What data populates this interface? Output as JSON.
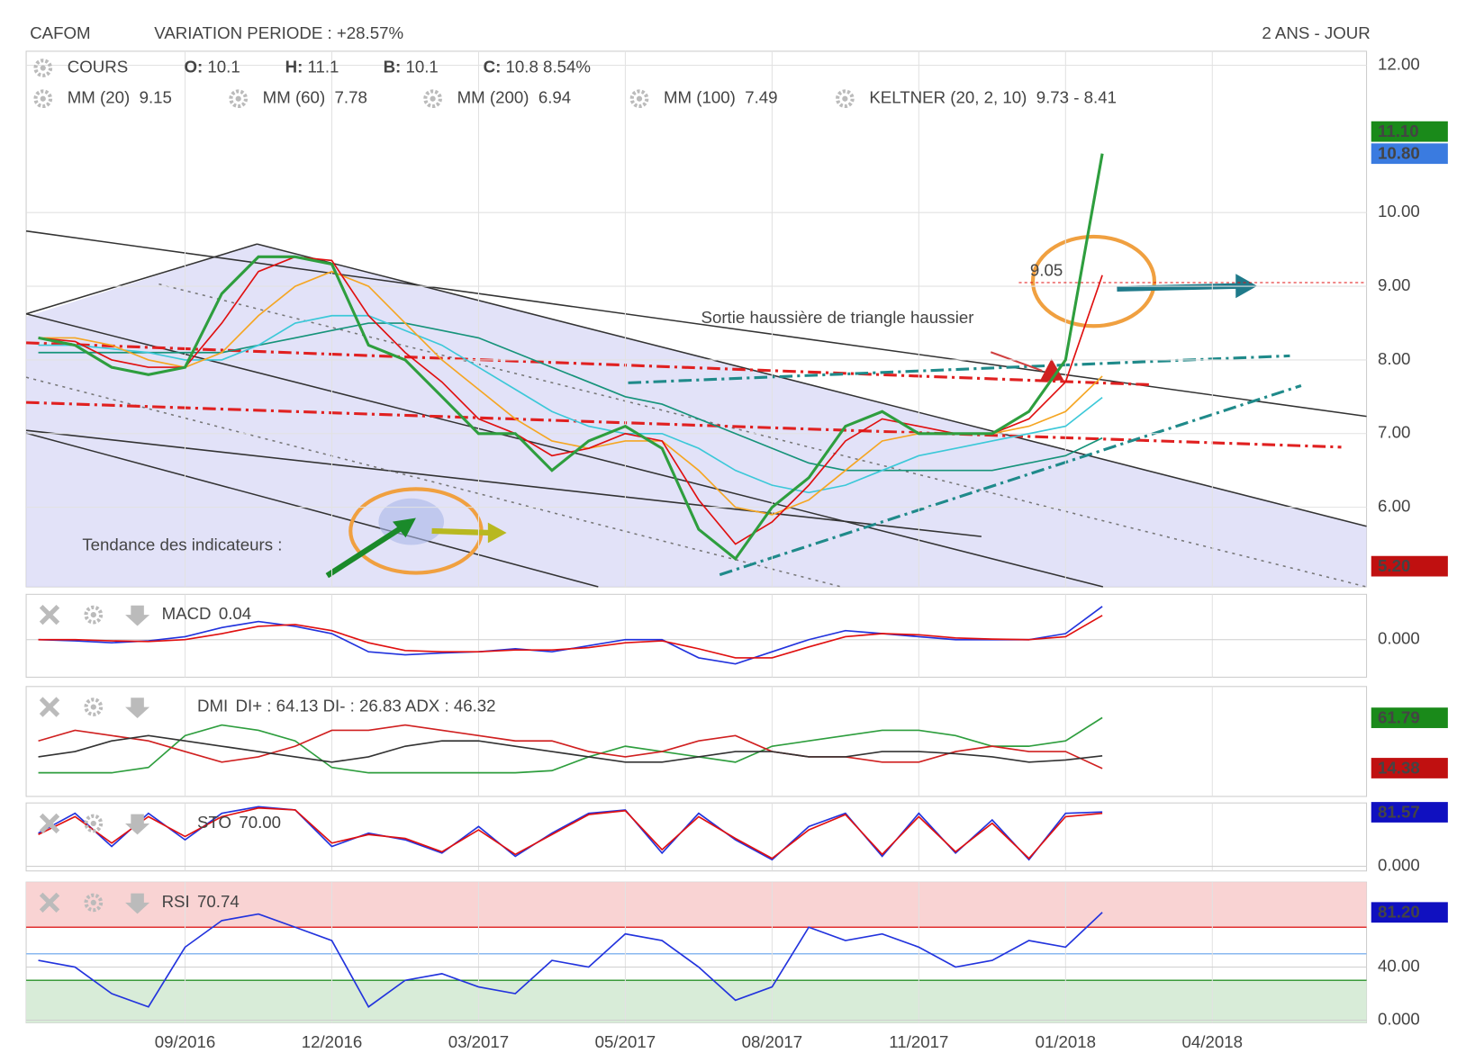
{
  "header": {
    "symbol": "CAFOM",
    "variation": "VARIATION PERIODE : +28.57%",
    "period": "2 ANS - JOUR"
  },
  "chart_data": [
    {
      "type": "line",
      "name": "COURS",
      "quote": [
        {
          "label": "O:",
          "value": 10.1
        },
        {
          "label": "H:",
          "value": 11.1
        },
        {
          "label": "B:",
          "value": 10.1
        },
        {
          "label": "C:",
          "value": 10.8
        }
      ],
      "change": "8.54%",
      "categories": [
        null,
        null,
        null,
        null,
        "09/2016",
        null,
        null,
        null,
        "12/2016",
        null,
        null,
        null,
        "03/2017",
        null,
        null,
        null,
        "05/2017",
        null,
        null,
        null,
        "08/2017",
        null,
        null,
        null,
        "11/2017",
        null,
        null,
        null,
        "01/2018",
        null,
        null,
        null,
        "04/2018",
        null,
        null,
        null,
        null
      ],
      "ylim": [
        4.92,
        12.19
      ],
      "yticks": [
        {
          "value": 6,
          "label": "6.00"
        },
        {
          "value": 7,
          "label": "7.00"
        },
        {
          "value": 8,
          "label": "8.00"
        },
        {
          "value": 9,
          "label": "9.00"
        },
        {
          "value": 10,
          "label": "10.00"
        },
        {
          "value": 12,
          "label": "12.00"
        }
      ],
      "grid": true,
      "series": [
        {
          "name": "MM (200)",
          "legend_value": "6.94",
          "color": "#16937a",
          "values": [
            8.1,
            8.1,
            8.1,
            8.1,
            8.1,
            8.1,
            8.2,
            8.3,
            8.4,
            8.5,
            8.5,
            8.4,
            8.3,
            8.1,
            7.9,
            7.7,
            7.5,
            7.4,
            7.2,
            7.0,
            6.8,
            6.6,
            6.5,
            6.5,
            6.5,
            6.5,
            6.5,
            6.6,
            6.7,
            6.94,
            null,
            null,
            null,
            null,
            null,
            null,
            null
          ]
        },
        {
          "name": "MM (100)",
          "legend_value": "7.49",
          "color": "#3cc8d8",
          "values": [
            8.2,
            8.2,
            8.15,
            8.1,
            8.0,
            8.0,
            8.2,
            8.5,
            8.6,
            8.6,
            8.4,
            8.2,
            7.9,
            7.6,
            7.3,
            7.1,
            7.0,
            7.0,
            6.8,
            6.5,
            6.3,
            6.2,
            6.3,
            6.5,
            6.7,
            6.8,
            6.9,
            7.0,
            7.1,
            7.49,
            null,
            null,
            null,
            null,
            null,
            null,
            null
          ]
        },
        {
          "name": "MM (60)",
          "legend_value": "7.78",
          "color": "#f5a623",
          "values": [
            8.3,
            8.3,
            8.2,
            8.0,
            7.9,
            8.1,
            8.6,
            9.0,
            9.2,
            9.0,
            8.5,
            8.0,
            7.6,
            7.2,
            6.9,
            6.8,
            6.9,
            6.9,
            6.5,
            6.0,
            5.9,
            6.1,
            6.5,
            6.9,
            7.0,
            7.0,
            7.0,
            7.1,
            7.3,
            7.78,
            null,
            null,
            null,
            null,
            null,
            null,
            null
          ]
        },
        {
          "name": "MM (20)",
          "legend_value": "9.15",
          "color": "#e01010",
          "values": [
            8.3,
            8.25,
            8.0,
            7.9,
            7.9,
            8.5,
            9.2,
            9.4,
            9.35,
            8.6,
            8.1,
            7.7,
            7.2,
            7.0,
            6.7,
            6.8,
            7.0,
            6.9,
            6.1,
            5.5,
            5.8,
            6.3,
            6.9,
            7.2,
            7.1,
            7.0,
            7.0,
            7.2,
            7.7,
            9.15,
            null,
            null,
            null,
            null,
            null,
            null,
            null
          ]
        },
        {
          "name": "COURS",
          "color": "#2e9e3e",
          "values": [
            8.3,
            8.2,
            7.9,
            7.8,
            7.9,
            8.9,
            9.4,
            9.4,
            9.3,
            8.2,
            8.0,
            7.5,
            7.0,
            7.0,
            6.5,
            6.9,
            7.1,
            6.8,
            5.7,
            5.3,
            6.0,
            6.4,
            7.1,
            7.3,
            7.0,
            7.0,
            7.0,
            7.3,
            8.0,
            10.8,
            null,
            null,
            null,
            null,
            null,
            null,
            null
          ]
        }
      ],
      "keltner": {
        "name": "KELTNER (20, 2, 10)",
        "value": "9.73 - 8.41",
        "color": "#1a8a1a"
      },
      "level": {
        "value": 9.05,
        "label": "9.05",
        "color": "#e01010"
      },
      "annotations": [
        {
          "text": "Sortie haussière de triangle haussier",
          "color": "#d32f2f"
        },
        {
          "text": "Tendance des indicateurs :",
          "color": "#1a237e"
        }
      ],
      "tags": [
        {
          "value": 11.1,
          "label": "11.10",
          "color": "#1a8a1a"
        },
        {
          "value": 10.8,
          "label": "10.80",
          "color": "#3a7be0"
        },
        {
          "value": 5.2,
          "label": "5.20",
          "color": "#c01010"
        }
      ]
    },
    {
      "type": "line",
      "name": "MACD",
      "label_value": "0.04",
      "ylim": [
        -0.62,
        0.75
      ],
      "yticks": [
        {
          "value": 0,
          "label": "0.000"
        }
      ],
      "series": [
        {
          "name": "MACD",
          "color": "#2233dd",
          "values": [
            0,
            -0.02,
            -0.05,
            -0.02,
            0.05,
            0.2,
            0.3,
            0.22,
            0.1,
            -0.2,
            -0.25,
            -0.22,
            -0.2,
            -0.15,
            -0.2,
            -0.1,
            0.0,
            0.0,
            -0.3,
            -0.4,
            -0.2,
            0.0,
            0.15,
            0.1,
            0.05,
            0,
            0,
            0.0,
            0.1,
            0.55,
            null,
            null,
            null,
            null,
            null,
            null,
            null
          ]
        },
        {
          "name": "Signal",
          "color": "#e01010",
          "values": [
            0,
            0,
            -0.02,
            -0.03,
            0,
            0.1,
            0.22,
            0.25,
            0.15,
            -0.05,
            -0.18,
            -0.2,
            -0.2,
            -0.17,
            -0.17,
            -0.13,
            -0.05,
            -0.02,
            -0.15,
            -0.3,
            -0.3,
            -0.12,
            0.05,
            0.1,
            0.08,
            0.03,
            0.01,
            0,
            0.05,
            0.4,
            null,
            null,
            null,
            null,
            null,
            null,
            null
          ]
        }
      ]
    },
    {
      "type": "line",
      "name": "DMI",
      "label_value": "DI+ : 64.13 DI- : 26.83 ADX : 46.32",
      "ylim": [
        -12.3,
        91.3
      ],
      "yticks": [],
      "series": [
        {
          "name": "DI+",
          "color": "#2e9e3e",
          "values": [
            10,
            10,
            10,
            15,
            45,
            55,
            50,
            40,
            15,
            10,
            10,
            10,
            10,
            10,
            12,
            25,
            35,
            30,
            25,
            20,
            35,
            40,
            45,
            50,
            50,
            45,
            35,
            35,
            40,
            62,
            null,
            null,
            null,
            null,
            null,
            null,
            null
          ]
        },
        {
          "name": "DI-",
          "color": "#d02020",
          "values": [
            40,
            50,
            45,
            40,
            30,
            20,
            25,
            35,
            50,
            50,
            55,
            50,
            45,
            40,
            40,
            30,
            25,
            30,
            40,
            45,
            30,
            25,
            25,
            20,
            20,
            30,
            35,
            30,
            30,
            14,
            null,
            null,
            null,
            null,
            null,
            null,
            null
          ]
        },
        {
          "name": "ADX",
          "color": "#333333",
          "values": [
            25,
            30,
            40,
            45,
            40,
            35,
            30,
            25,
            20,
            25,
            35,
            40,
            40,
            35,
            30,
            25,
            20,
            20,
            25,
            30,
            30,
            25,
            25,
            30,
            30,
            28,
            25,
            20,
            22,
            26,
            null,
            null,
            null,
            null,
            null,
            null,
            null
          ]
        }
      ],
      "tags": [
        {
          "value": 61.79,
          "label": "61.79",
          "color": "#1a8a1a"
        },
        {
          "value": 14.38,
          "label": "14.38",
          "color": "#c01010"
        }
      ]
    },
    {
      "type": "line",
      "name": "STO",
      "label_value": "70.00",
      "ylim": [
        -7,
        95.6
      ],
      "yticks": [
        {
          "value": 0,
          "label": "0.000"
        }
      ],
      "series": [
        {
          "name": "%K",
          "color": "#2233dd",
          "values": [
            50,
            80,
            30,
            80,
            40,
            80,
            90,
            85,
            30,
            50,
            40,
            20,
            60,
            15,
            50,
            80,
            85,
            20,
            80,
            40,
            10,
            60,
            80,
            15,
            80,
            20,
            70,
            10,
            80,
            82,
            null,
            null,
            null,
            null,
            null,
            null,
            null
          ]
        },
        {
          "name": "%D",
          "color": "#e01010",
          "values": [
            48,
            75,
            35,
            75,
            45,
            75,
            88,
            85,
            35,
            48,
            42,
            22,
            55,
            18,
            48,
            78,
            84,
            25,
            75,
            42,
            12,
            55,
            78,
            18,
            75,
            22,
            65,
            12,
            75,
            80,
            null,
            null,
            null,
            null,
            null,
            null,
            null
          ]
        }
      ],
      "tags": [
        {
          "value": 81.57,
          "label": "81.57",
          "color": "#1010c0"
        }
      ]
    },
    {
      "type": "line",
      "name": "RSI",
      "label_value": "70.74",
      "ylim": [
        -2,
        104
      ],
      "yticks": [
        {
          "value": 0,
          "label": "0.000"
        },
        {
          "value": 40,
          "label": "40.00"
        }
      ],
      "zones": {
        "upper": 70,
        "middle": 50,
        "lower": 30
      },
      "series": [
        {
          "name": "RSI",
          "color": "#2233dd",
          "values": [
            45,
            40,
            20,
            10,
            55,
            75,
            80,
            70,
            60,
            10,
            30,
            35,
            25,
            20,
            45,
            40,
            65,
            60,
            40,
            15,
            25,
            70,
            60,
            65,
            55,
            40,
            45,
            60,
            55,
            81.2,
            null,
            null,
            null,
            null,
            null,
            null,
            null
          ]
        }
      ],
      "tags": [
        {
          "value": 81.2,
          "label": "81.20",
          "color": "#1010c0"
        }
      ]
    }
  ]
}
